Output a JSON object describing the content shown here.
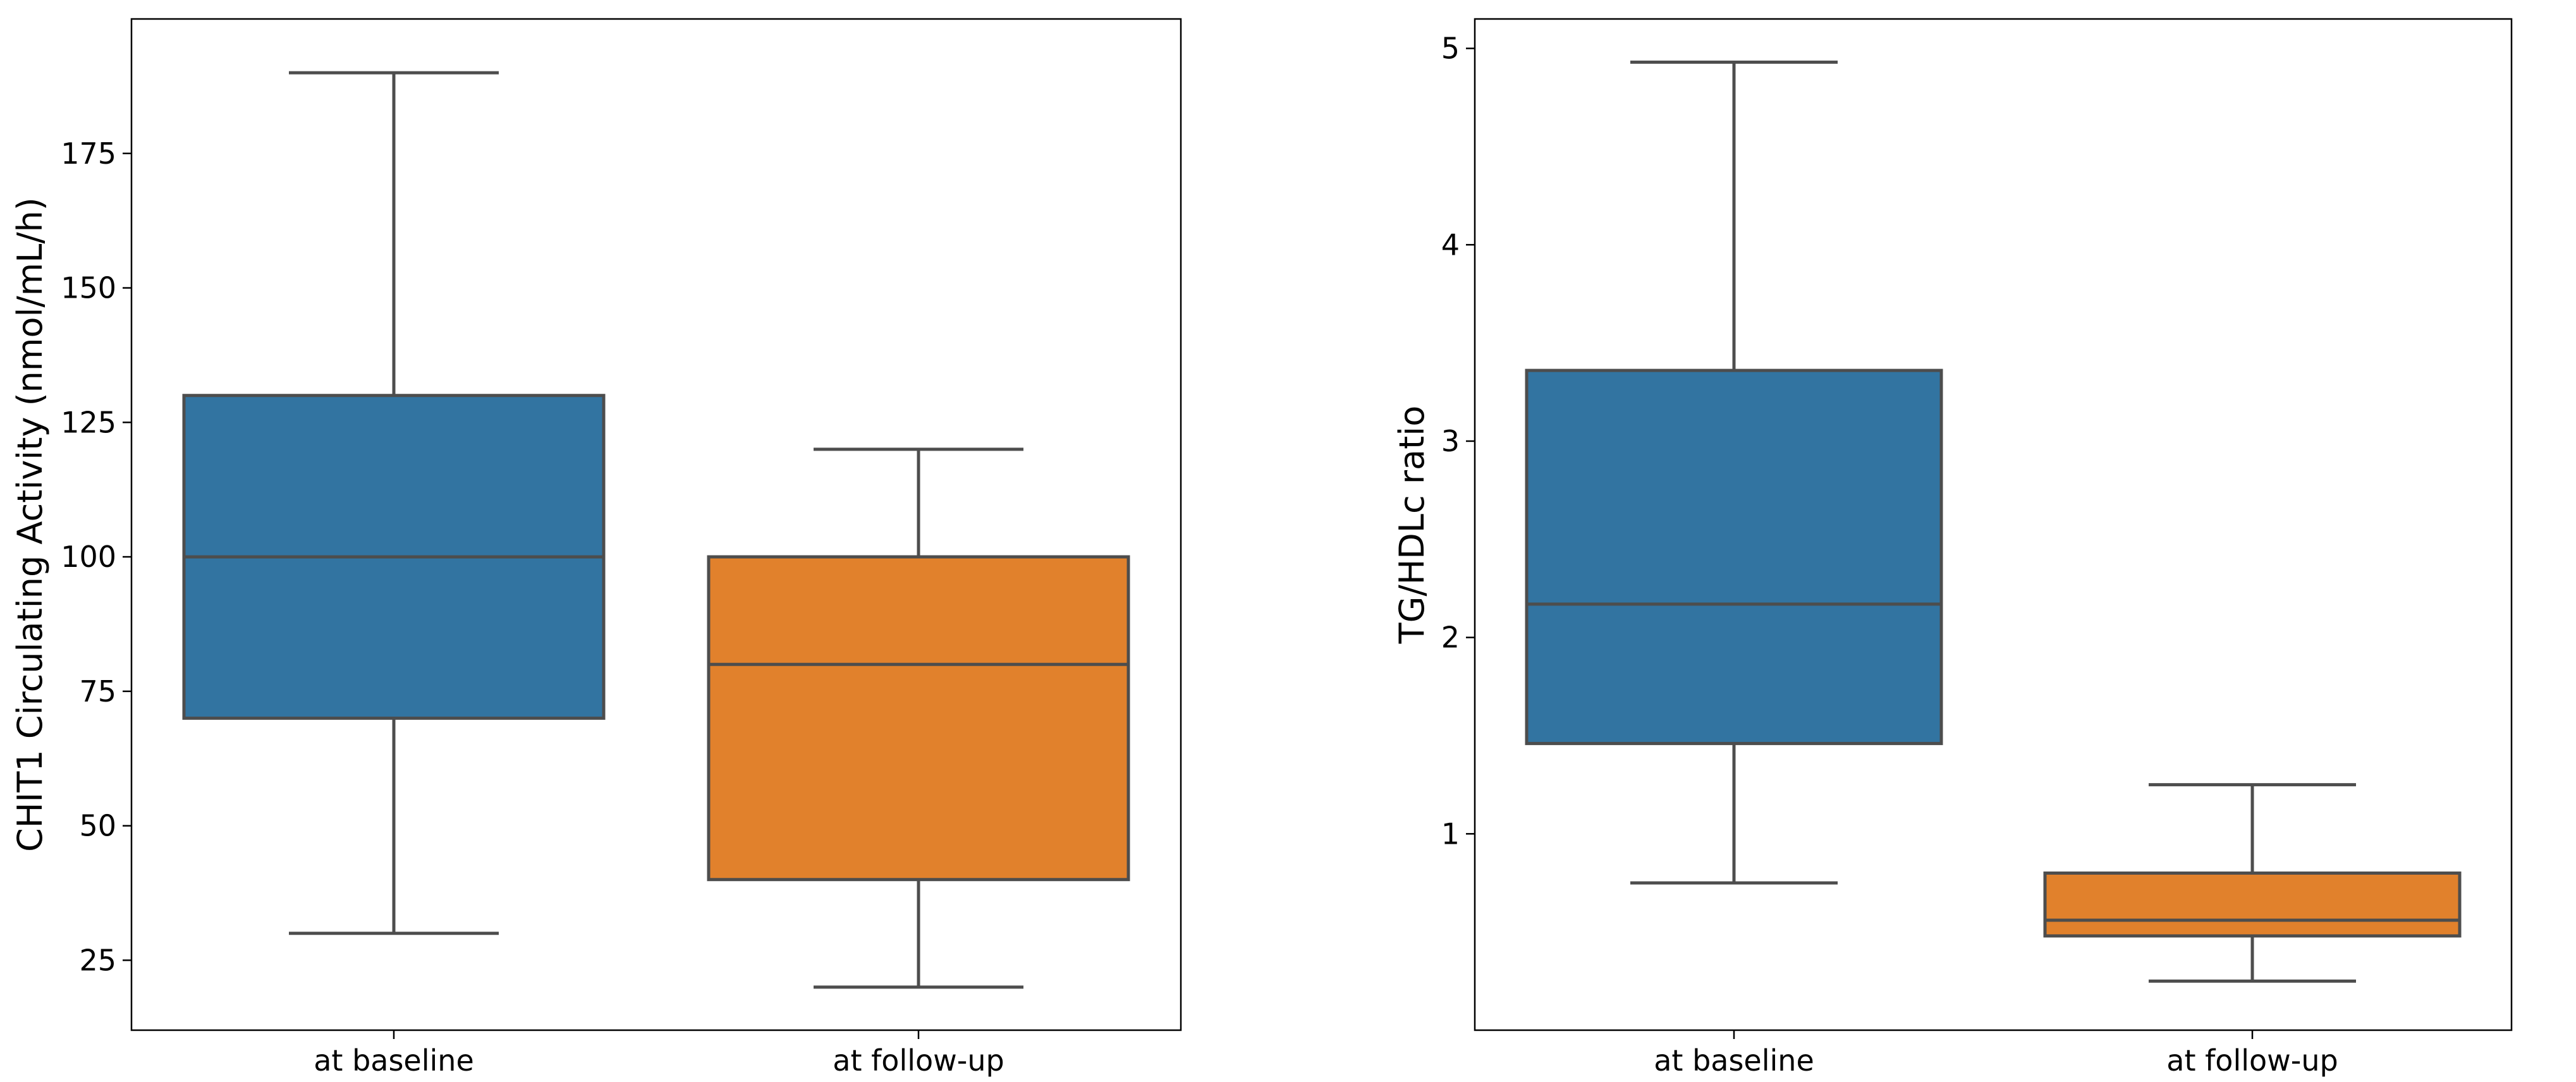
{
  "chart_data": [
    {
      "type": "box",
      "title": "",
      "xlabel": "",
      "ylabel": "CHIT1 Circulating Activity (nmol/mL/h)",
      "ylim": [
        12,
        200
      ],
      "yticks": [
        25,
        50,
        75,
        100,
        125,
        150,
        175
      ],
      "categories": [
        "at baseline",
        "at follow-up"
      ],
      "series": [
        {
          "name": "at baseline",
          "color": "#3274a1",
          "whisker_low": 30,
          "q1": 70,
          "median": 100,
          "q3": 130,
          "whisker_high": 190
        },
        {
          "name": "at follow-up",
          "color": "#e1812c",
          "whisker_low": 20,
          "q1": 40,
          "median": 80,
          "q3": 100,
          "whisker_high": 120
        }
      ],
      "grid": false
    },
    {
      "type": "box",
      "title": "",
      "xlabel": "",
      "ylabel": "TG/HDLc ratio",
      "ylim": [
        0.0,
        5.15
      ],
      "yticks": [
        1,
        2,
        3,
        4,
        5
      ],
      "categories": [
        "at baseline",
        "at follow-up"
      ],
      "series": [
        {
          "name": "at baseline",
          "color": "#3274a1",
          "whisker_low": 0.75,
          "q1": 1.46,
          "median": 2.17,
          "q3": 3.36,
          "whisker_high": 4.93
        },
        {
          "name": "at follow-up",
          "color": "#e1812c",
          "whisker_low": 0.25,
          "q1": 0.48,
          "median": 0.56,
          "q3": 0.8,
          "whisker_high": 1.25
        }
      ],
      "grid": false
    }
  ]
}
